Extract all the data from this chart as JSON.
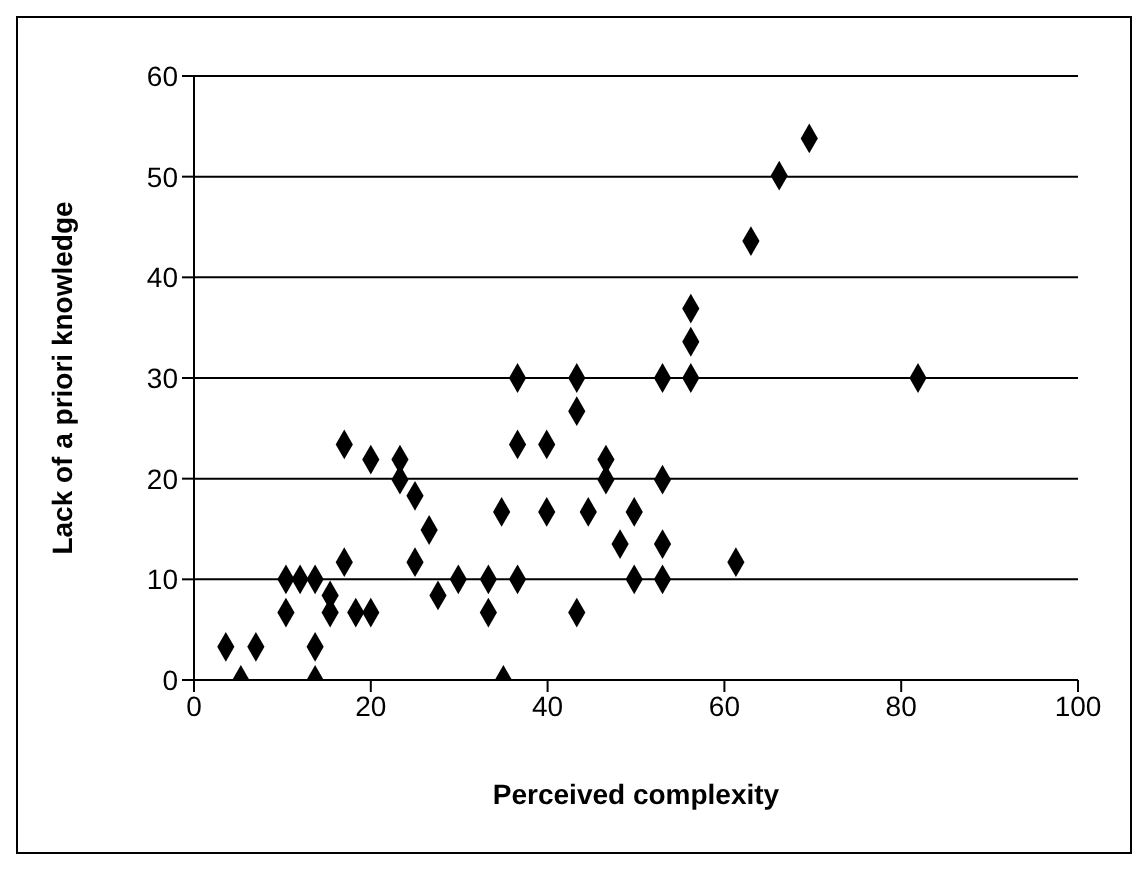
{
  "chart_data": {
    "type": "scatter",
    "xlabel": "Perceived complexity",
    "ylabel": "Lack of a priori knowledge",
    "x": [
      3.6,
      5.3,
      7.0,
      10.4,
      10.4,
      12.0,
      13.7,
      13.7,
      13.7,
      15.4,
      15.4,
      17.0,
      17.0,
      18.3,
      20.0,
      20.0,
      23.3,
      23.3,
      25.0,
      25.0,
      26.6,
      27.6,
      29.9,
      33.3,
      33.3,
      34.8,
      35.0,
      36.6,
      36.6,
      36.6,
      39.9,
      39.9,
      43.3,
      43.3,
      43.3,
      44.6,
      46.6,
      46.6,
      49.8,
      48.2,
      49.8,
      53.0,
      53.0,
      53.0,
      53.0,
      56.2,
      56.2,
      56.2,
      61.3,
      63.0,
      66.2,
      69.6,
      81.9
    ],
    "values": [
      3.3,
      0,
      3.3,
      10,
      6.7,
      10,
      10,
      3.3,
      0,
      8.4,
      6.7,
      23.4,
      11.7,
      6.7,
      6.7,
      21.9,
      21.9,
      19.9,
      18.3,
      11.7,
      14.9,
      8.4,
      10,
      10,
      6.7,
      16.7,
      0,
      30,
      23.4,
      10,
      23.4,
      16.7,
      30,
      26.7,
      6.7,
      16.7,
      21.9,
      19.9,
      16.7,
      13.5,
      10,
      30,
      19.9,
      13.5,
      10,
      36.9,
      33.6,
      30,
      11.7,
      43.6,
      50.1,
      53.8,
      30
    ],
    "color": "#000000",
    "marker": "diamond",
    "xlim": [
      0,
      100
    ],
    "xticks": [
      0,
      20,
      40,
      60,
      80,
      100
    ],
    "ylim": [
      0,
      60
    ],
    "yticks": [
      0,
      10,
      20,
      30,
      40,
      50,
      60
    ],
    "grid": "y"
  }
}
